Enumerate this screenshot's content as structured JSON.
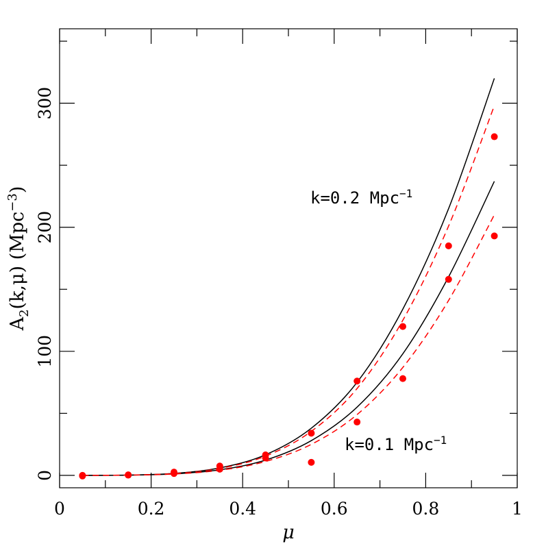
{
  "chart_data": {
    "type": "line",
    "xlabel": "μ",
    "ylabel_main": "A",
    "ylabel_sub": "2",
    "ylabel_rest": "(k,μ)  (Mpc",
    "ylabel_sup": "−3",
    "ylabel_close": ")",
    "xlim": [
      0,
      1
    ],
    "ylim": [
      -10,
      360
    ],
    "x_ticks": [
      0,
      0.2,
      0.4,
      0.6,
      0.8,
      1
    ],
    "x_tick_labels": [
      "0",
      "0.2",
      "0.4",
      "0.6",
      "0.8",
      "1"
    ],
    "y_ticks": [
      0,
      100,
      200,
      300
    ],
    "y_tick_labels": [
      "0",
      "100",
      "200",
      "300"
    ],
    "grid": false,
    "annotations": [
      {
        "text": "k=0.2 Mpc",
        "sup": "−1",
        "x": 0.55,
        "y": 222
      },
      {
        "text": "k=0.1 Mpc",
        "sup": "−1",
        "x": 0.625,
        "y": 22
      }
    ],
    "series": [
      {
        "style": "solid",
        "color": "#000000",
        "x": [
          0.05,
          0.15,
          0.25,
          0.35,
          0.45,
          0.55,
          0.65,
          0.75,
          0.85,
          0.95
        ],
        "y": [
          0.0,
          0.2,
          1.6,
          6.0,
          16.6,
          38.0,
          75.0,
          134.0,
          215.0,
          320.0
        ]
      },
      {
        "style": "dashed",
        "color": "#ff0000",
        "x": [
          0.05,
          0.15,
          0.25,
          0.35,
          0.45,
          0.55,
          0.65,
          0.75,
          0.85,
          0.95
        ],
        "y": [
          0.0,
          0.2,
          1.5,
          5.6,
          15.5,
          35.5,
          70.0,
          125.0,
          201.0,
          298.0
        ]
      },
      {
        "style": "solid",
        "color": "#000000",
        "x": [
          0.05,
          0.15,
          0.25,
          0.35,
          0.45,
          0.55,
          0.65,
          0.75,
          0.85,
          0.95
        ],
        "y": [
          0.0,
          0.2,
          1.2,
          4.5,
          12.3,
          28.0,
          55.0,
          98.0,
          160.0,
          237.0
        ]
      },
      {
        "style": "dashed",
        "color": "#ff0000",
        "x": [
          0.05,
          0.15,
          0.25,
          0.35,
          0.45,
          0.55,
          0.65,
          0.75,
          0.85,
          0.95
        ],
        "y": [
          0.0,
          0.2,
          1.1,
          4.1,
          11.2,
          25.0,
          49.0,
          87.0,
          141.0,
          210.0
        ]
      },
      {
        "style": "points",
        "color": "#ff0000",
        "x": [
          0.05,
          0.15,
          0.25,
          0.35,
          0.45,
          0.55,
          0.65,
          0.75,
          0.85,
          0.95
        ],
        "y": [
          0.0,
          0.4,
          2.6,
          7.5,
          16.5,
          34.0,
          76.0,
          120.0,
          185.0,
          273.0
        ]
      },
      {
        "style": "points",
        "color": "#ff0000",
        "x": [
          0.05,
          0.15,
          0.25,
          0.35,
          0.45,
          0.55,
          0.65,
          0.75,
          0.85,
          0.95
        ],
        "y": [
          -0.5,
          0.2,
          1.5,
          5.0,
          14.0,
          10.5,
          43.0,
          78.0,
          158.0,
          193.0
        ]
      }
    ]
  }
}
